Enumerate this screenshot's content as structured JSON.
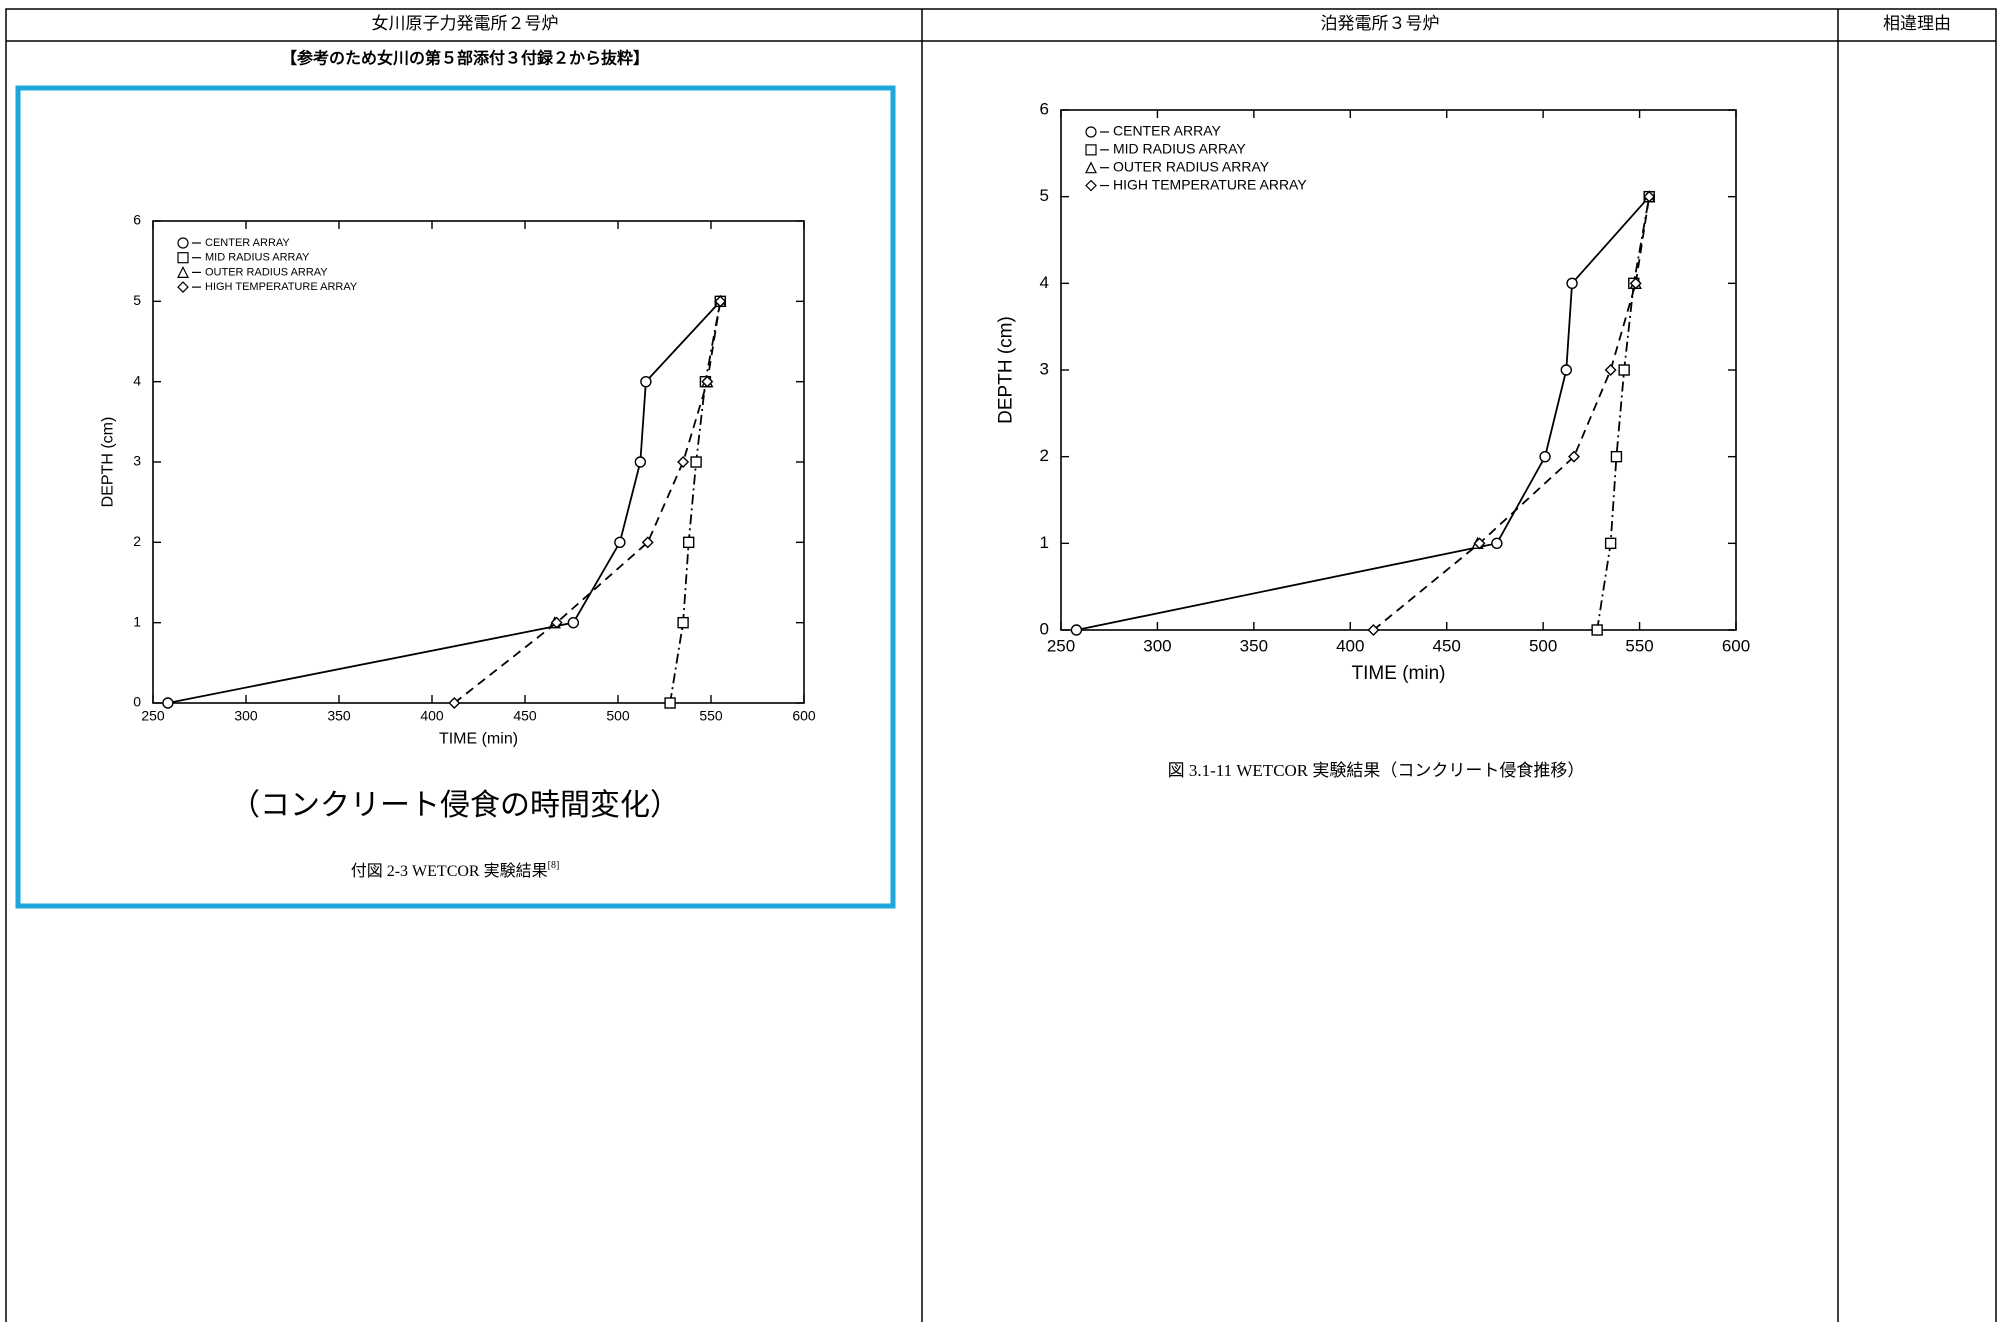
{
  "table": {
    "headers": [
      "女川原子力発電所２号炉",
      "泊発電所３号炉",
      "相違理由"
    ]
  },
  "left": {
    "note": "【参考のため女川の第５部添付３付録２から抜粋】",
    "caption_sub": "（コンクリート侵食の時間変化）",
    "caption": "付図 2-3 WETCOR 実験結果",
    "caption_ref": "[8]"
  },
  "right": {
    "caption": "図 3.1-11 WETCOR 実験結果（コンクリート侵食推移）"
  },
  "chart_data": [
    {
      "type": "line",
      "xlabel": "TIME (min)",
      "ylabel": "DEPTH (cm)",
      "xlim": [
        250,
        600
      ],
      "ylim": [
        0,
        6
      ],
      "xticks": [
        250,
        300,
        350,
        400,
        450,
        500,
        550,
        600
      ],
      "yticks": [
        0,
        1,
        2,
        3,
        4,
        5,
        6
      ],
      "legend": "upper left",
      "series": [
        {
          "name": "CENTER ARRAY",
          "color": "#000000",
          "marker": "circle",
          "line": "solid",
          "x": [
            258,
            476,
            501,
            512,
            515,
            555
          ],
          "values": [
            0,
            1,
            2,
            3,
            4,
            5
          ]
        },
        {
          "name": "MID RADIUS ARRAY",
          "color": "#000000",
          "marker": "square",
          "line": "dashdot",
          "x": [
            528,
            535,
            538,
            542,
            547,
            555
          ],
          "values": [
            0,
            1,
            2,
            3,
            4,
            5
          ]
        },
        {
          "name": "OUTER RADIUS ARRAY",
          "color": "#000000",
          "marker": "triangle",
          "line": "none",
          "x": [
            466,
            548,
            555
          ],
          "values": [
            1,
            4,
            5
          ]
        },
        {
          "name": "HIGH TEMPERATURE ARRAY",
          "color": "#000000",
          "marker": "diamond",
          "line": "dashed",
          "x": [
            412,
            467,
            516,
            535,
            548,
            555
          ],
          "values": [
            0,
            1,
            2,
            3,
            4,
            5
          ]
        }
      ]
    },
    {
      "type": "line",
      "xlabel": "TIME (min)",
      "ylabel": "DEPTH (cm)",
      "xlim": [
        250,
        600
      ],
      "ylim": [
        0,
        6
      ],
      "xticks": [
        250,
        300,
        350,
        400,
        450,
        500,
        550,
        600
      ],
      "yticks": [
        0,
        1,
        2,
        3,
        4,
        5,
        6
      ],
      "legend": "upper left",
      "series": [
        {
          "name": "CENTER ARRAY",
          "color": "#000000",
          "marker": "circle",
          "line": "solid",
          "x": [
            258,
            476,
            501,
            512,
            515,
            555
          ],
          "values": [
            0,
            1,
            2,
            3,
            4,
            5
          ]
        },
        {
          "name": "MID RADIUS ARRAY",
          "color": "#000000",
          "marker": "square",
          "line": "dashdot",
          "x": [
            528,
            535,
            538,
            542,
            547,
            555
          ],
          "values": [
            0,
            1,
            2,
            3,
            4,
            5
          ]
        },
        {
          "name": "OUTER RADIUS ARRAY",
          "color": "#000000",
          "marker": "triangle",
          "line": "none",
          "x": [
            466,
            548,
            555
          ],
          "values": [
            1,
            4,
            5
          ]
        },
        {
          "name": "HIGH TEMPERATURE ARRAY",
          "color": "#000000",
          "marker": "diamond",
          "line": "dashed",
          "x": [
            412,
            467,
            516,
            535,
            548,
            555
          ],
          "values": [
            0,
            1,
            2,
            3,
            4,
            5
          ]
        }
      ]
    }
  ]
}
